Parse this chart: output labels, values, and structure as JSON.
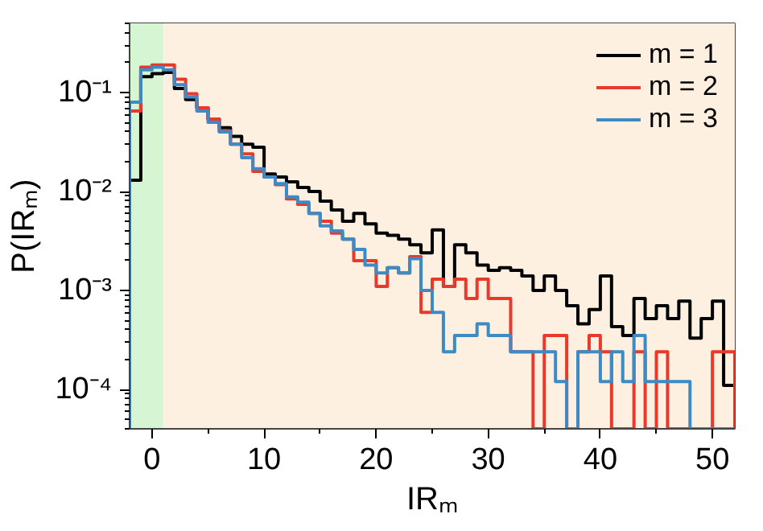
{
  "chart_data": {
    "type": "histogram",
    "xlabel": "IRₘ",
    "ylabel": "P(IRₘ)",
    "bins": [
      -2,
      -1,
      0,
      1,
      2,
      3,
      4,
      5,
      6,
      7,
      8,
      9,
      10,
      11,
      12,
      13,
      14,
      15,
      16,
      17,
      18,
      19,
      20,
      21,
      22,
      23,
      24,
      25,
      26,
      27,
      28,
      29,
      30,
      31,
      32,
      33,
      34,
      35,
      36,
      37,
      38,
      39,
      40,
      41,
      42,
      43,
      44,
      45,
      46,
      47,
      48,
      49,
      50,
      51,
      52
    ],
    "series": [
      {
        "name": "m = 1",
        "color": "#000000",
        "values": [
          0.013,
          0.145,
          0.155,
          0.16,
          0.11,
          0.085,
          0.07,
          0.054,
          0.044,
          0.036,
          0.03,
          0.028,
          0.015,
          0.014,
          0.0125,
          0.011,
          0.01,
          0.008,
          0.0065,
          0.005,
          0.006,
          0.0047,
          0.0038,
          0.0036,
          0.0033,
          0.0029,
          0.0024,
          0.0041,
          0.0011,
          0.0029,
          0.0024,
          0.0018,
          0.0016,
          0.0017,
          0.0016,
          0.0014,
          0.001,
          0.0014,
          0.001,
          0.0007,
          0.00046,
          0.00064,
          0.0014,
          0.00043,
          0.00035,
          0.00083,
          0.00052,
          0.0007,
          0.00052,
          0.00078,
          0.00033,
          0.00052,
          0.00078,
          0.00011
        ]
      },
      {
        "name": "m = 2",
        "color": "#e8392a",
        "values": [
          0.065,
          0.18,
          0.19,
          0.19,
          0.136,
          0.097,
          0.07,
          0.054,
          0.041,
          0.03,
          0.024,
          0.016,
          0.014,
          0.0117,
          0.0084,
          0.0074,
          0.006,
          0.005,
          0.0038,
          0.0033,
          0.002,
          0.002,
          0.0011,
          0.0017,
          0.0015,
          0.0022,
          0.0006,
          0.0013,
          0.0011,
          0.0013,
          0.00083,
          0.0013,
          0.00083,
          0.00083,
          0.00024,
          0.00024,
          null,
          0.00035,
          0.00035,
          null,
          0.00024,
          0.00035,
          0.00024,
          null,
          null,
          0.00024,
          null,
          0.00024,
          null,
          null,
          null,
          null,
          0.00024,
          0.00024
        ]
      },
      {
        "name": "m = 3",
        "color": "#3d8ac4",
        "values": [
          0.08,
          0.17,
          0.18,
          0.17,
          0.12,
          0.09,
          0.065,
          0.05,
          0.04,
          0.03,
          0.022,
          0.017,
          0.014,
          0.012,
          0.0088,
          0.0078,
          0.006,
          0.0045,
          0.004,
          0.0033,
          0.0026,
          0.0018,
          0.0015,
          0.0017,
          0.0015,
          0.0021,
          0.001,
          0.0006,
          0.00024,
          0.00035,
          0.00035,
          0.00046,
          0.00035,
          0.00035,
          0.00024,
          0.00024,
          0.00024,
          0.00024,
          0.00012,
          null,
          0.00024,
          0.00024,
          0.00012,
          0.00024,
          0.00012,
          0.00035,
          0.00012,
          0.00012,
          0.00012,
          0.00012,
          null,
          null,
          null,
          null
        ]
      }
    ],
    "xlim": [
      -2,
      52
    ],
    "ylim": [
      4e-05,
      0.5
    ],
    "xticks": [
      0,
      10,
      20,
      30,
      40,
      50
    ],
    "yticks": [
      {
        "value": 0.0001,
        "label": "10⁻⁴"
      },
      {
        "value": 0.001,
        "label": "10⁻³"
      },
      {
        "value": 0.01,
        "label": "10⁻²"
      },
      {
        "value": 0.1,
        "label": "10⁻¹"
      }
    ],
    "log": "y",
    "legend": "top right",
    "bands": [
      {
        "axis": "x",
        "from": -2,
        "to": 1,
        "color": "#d6f5d2"
      },
      {
        "axis": "x",
        "from": 1,
        "to": 52,
        "color": "#fdf0e1"
      }
    ]
  }
}
